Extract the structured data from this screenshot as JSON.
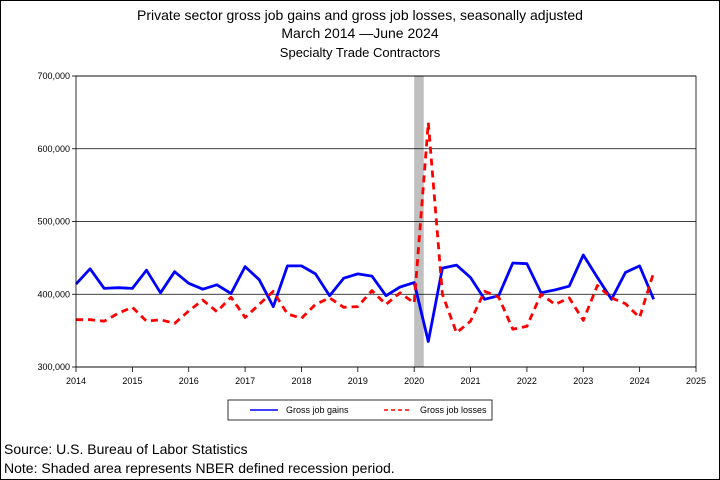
{
  "header": {
    "line1": "Private sector gross job gains and gross job losses, seasonally adjusted",
    "line2": "March 2014 —June 2024",
    "line3": "Specialty Trade Contractors"
  },
  "footer": {
    "source": "Source: U.S. Bureau of Labor Statistics",
    "note": "Note: Shaded area represents NBER defined recession period."
  },
  "chart_data": {
    "type": "line",
    "title": "Private sector gross job gains and gross job losses, seasonally adjusted",
    "subtitle": "March 2014 —June 2024",
    "xlim": [
      2014,
      2025
    ],
    "ylim": [
      300000,
      700000
    ],
    "x_ticks": [
      "2014",
      "2015",
      "2016",
      "2017",
      "2018",
      "2019",
      "2020",
      "2021",
      "2022",
      "2023",
      "2024",
      "2025"
    ],
    "y_ticks": [
      "300,000",
      "400,000",
      "500,000",
      "600,000",
      "700,000"
    ],
    "grid": "horizontal",
    "legend": "bottom",
    "recession": {
      "start": 2020.0,
      "end": 2020.17,
      "color": "#c0c0c0"
    },
    "x": [
      2014.0,
      2014.25,
      2014.5,
      2014.75,
      2015.0,
      2015.25,
      2015.5,
      2015.75,
      2016.0,
      2016.25,
      2016.5,
      2016.75,
      2017.0,
      2017.25,
      2017.5,
      2017.75,
      2018.0,
      2018.25,
      2018.5,
      2018.75,
      2019.0,
      2019.25,
      2019.5,
      2019.75,
      2020.0,
      2020.25,
      2020.5,
      2020.75,
      2021.0,
      2021.25,
      2021.5,
      2021.75,
      2022.0,
      2022.25,
      2022.5,
      2022.75,
      2023.0,
      2023.25,
      2023.5,
      2023.75,
      2024.0,
      2024.25
    ],
    "series": [
      {
        "name": "Gross job gains",
        "color": "#0000ff",
        "style": "solid",
        "values": [
          414000,
          435000,
          408000,
          409000,
          408000,
          433000,
          402000,
          431000,
          415000,
          407000,
          413000,
          401000,
          438000,
          420000,
          383000,
          439000,
          439000,
          428000,
          398000,
          422000,
          428000,
          425000,
          398000,
          410000,
          416000,
          335000,
          436000,
          440000,
          423000,
          393000,
          398000,
          443000,
          442000,
          402000,
          406000,
          411000,
          454000,
          423000,
          393000,
          430000,
          439000,
          393000
        ]
      },
      {
        "name": "Gross job losses",
        "color": "#ff0000",
        "style": "dashed",
        "values": [
          365000,
          365000,
          363000,
          374000,
          382000,
          363000,
          365000,
          360000,
          377000,
          392000,
          376000,
          396000,
          368000,
          386000,
          404000,
          373000,
          367000,
          386000,
          395000,
          382000,
          383000,
          405000,
          386000,
          402000,
          388000,
          636000,
          400000,
          347000,
          363000,
          404000,
          396000,
          352000,
          356000,
          400000,
          386000,
          395000,
          364000,
          412000,
          395000,
          387000,
          368000,
          430000
        ]
      }
    ]
  }
}
